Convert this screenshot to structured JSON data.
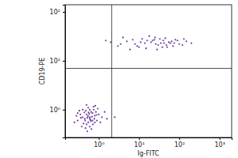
{
  "chart_data": {
    "type": "scatter",
    "x_label": "Ig-FITC",
    "y_label": "CD19-PE",
    "log": true,
    "color": "#5b1f8f",
    "xlim": [
      0.146,
      2000
    ],
    "ylim": [
      0.27,
      140
    ],
    "xticks": [
      {
        "value": 1,
        "label": "10⁰"
      },
      {
        "value": 10,
        "label": "10¹"
      },
      {
        "value": 100,
        "label": "10²"
      },
      {
        "value": 1000,
        "label": "10³"
      }
    ],
    "yticks": [
      {
        "value": 1,
        "label": "10⁰"
      },
      {
        "value": 10,
        "label": "10¹"
      },
      {
        "value": 100,
        "label": "10²"
      }
    ],
    "gate_x": 2.1,
    "gate_y": 7,
    "x": [
      0.6,
      0.5,
      0.7,
      0.45,
      0.8,
      0.55,
      0.65,
      0.4,
      0.9,
      0.35,
      0.5,
      0.75,
      0.6,
      0.3,
      1.0,
      0.55,
      0.42,
      0.68,
      0.85,
      0.48,
      0.62,
      0.38,
      0.72,
      0.52,
      0.58,
      0.44,
      1.2,
      0.28,
      0.95,
      0.66,
      0.5,
      0.8,
      0.33,
      0.6,
      1.4,
      0.25,
      0.46,
      0.7,
      0.54,
      0.78,
      0.4,
      1.1,
      0.64,
      0.36,
      0.56,
      0.88,
      0.47,
      0.74,
      0.3,
      0.6,
      1.6,
      2.5,
      0.52,
      0.82,
      3,
      5,
      8,
      12,
      15,
      20,
      25,
      30,
      40,
      50,
      60,
      80,
      100,
      150,
      4,
      6,
      10,
      18,
      22,
      28,
      35,
      45,
      55,
      70,
      90,
      120,
      2,
      7,
      14,
      16,
      9,
      26,
      33,
      38,
      65,
      200,
      3.5,
      11,
      48,
      24,
      1.5,
      75,
      130,
      42
    ],
    "values": [
      0.7,
      0.8,
      0.6,
      0.65,
      0.75,
      0.55,
      0.9,
      0.7,
      0.6,
      0.8,
      0.5,
      1.0,
      0.45,
      0.6,
      0.8,
      1.1,
      0.52,
      0.72,
      0.9,
      0.95,
      0.62,
      0.45,
      0.5,
      0.68,
      0.82,
      0.88,
      0.7,
      0.75,
      1.05,
      0.4,
      1.25,
      0.55,
      0.95,
      1.0,
      0.9,
      0.55,
      0.6,
      0.85,
      0.74,
      0.65,
      1.0,
      0.55,
      0.58,
      0.68,
      0.88,
      0.78,
      0.42,
      1.15,
      0.85,
      0.66,
      0.65,
      0.7,
      0.36,
      1.2,
      20,
      25,
      22,
      28,
      18,
      24,
      30,
      21,
      26,
      19,
      23,
      27,
      22,
      25,
      30,
      17,
      19,
      32,
      26,
      17,
      23,
      29,
      24,
      20,
      26,
      21,
      24,
      27,
      23,
      26,
      20,
      22,
      28,
      19,
      25,
      23,
      22,
      24,
      21,
      27,
      26,
      23,
      28,
      23
    ]
  }
}
